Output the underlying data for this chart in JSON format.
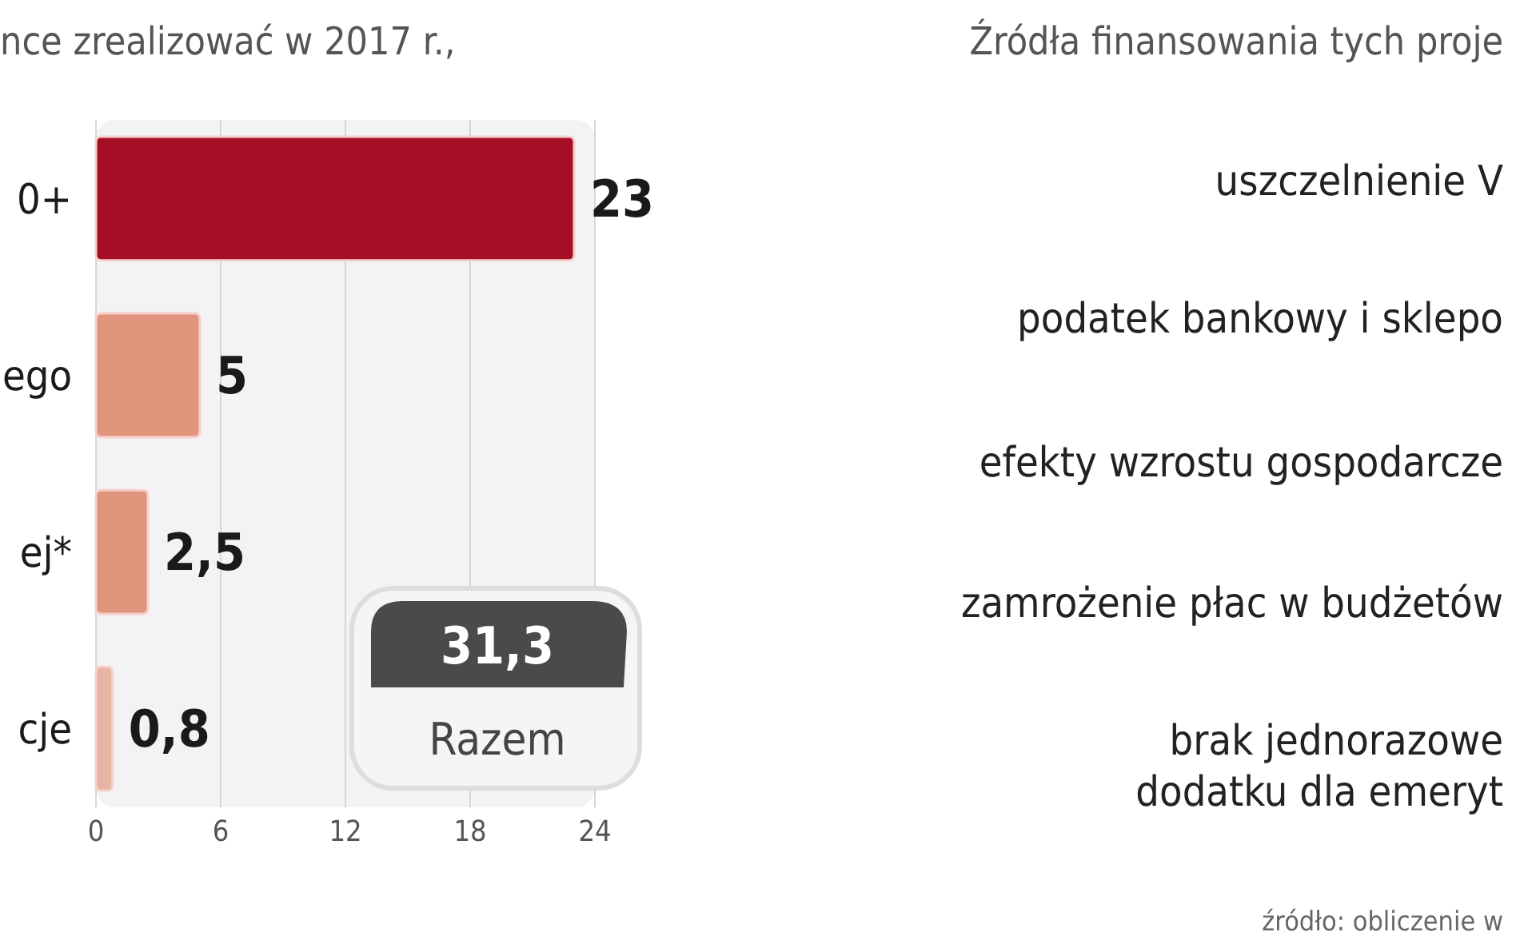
{
  "chart_data": [
    {
      "type": "bar",
      "orientation": "horizontal",
      "title": "nce zrealizować w 2017 r.,",
      "categories": [
        "0+",
        "ego",
        "ej*",
        "cje"
      ],
      "values": [
        23,
        5,
        2.5,
        0.8
      ],
      "colors": [
        "#a50f26",
        "#e0957c",
        "#e0957c",
        "#e8b4a4"
      ],
      "value_labels": [
        "23",
        "5",
        "2,5",
        "0,8"
      ],
      "xlim": [
        0,
        24
      ],
      "xticks": [
        0,
        6,
        12,
        18,
        24
      ],
      "grid": "x",
      "annotations": [
        "31,3",
        "Razem"
      ]
    },
    {
      "type": "other",
      "title": "Źródła finansowania tych proje",
      "annotations": [
        "uszczelnienie V",
        "podatek bankowy i sklepo",
        "efekty wzrostu gospodarcze",
        "zamrożenie płac w budżetów",
        "brak jednorazowe\ndodatku dla emeryt",
        "źródło: obliczenie w"
      ]
    }
  ]
}
